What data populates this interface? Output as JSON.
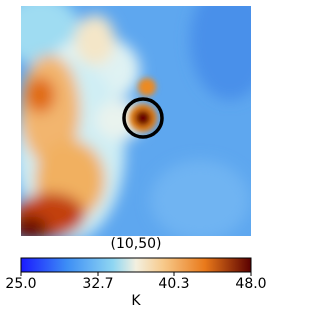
{
  "chart_data": {
    "type": "heatmap",
    "title": "(10,50)",
    "colorbar_label": "K",
    "clim": [
      25.0,
      48.0
    ],
    "cticks": [
      {
        "value": 25.0,
        "label": "25.0"
      },
      32.7,
      40.3,
      {
        "value": 48.0,
        "label": "48.0"
      }
    ]
  }
}
